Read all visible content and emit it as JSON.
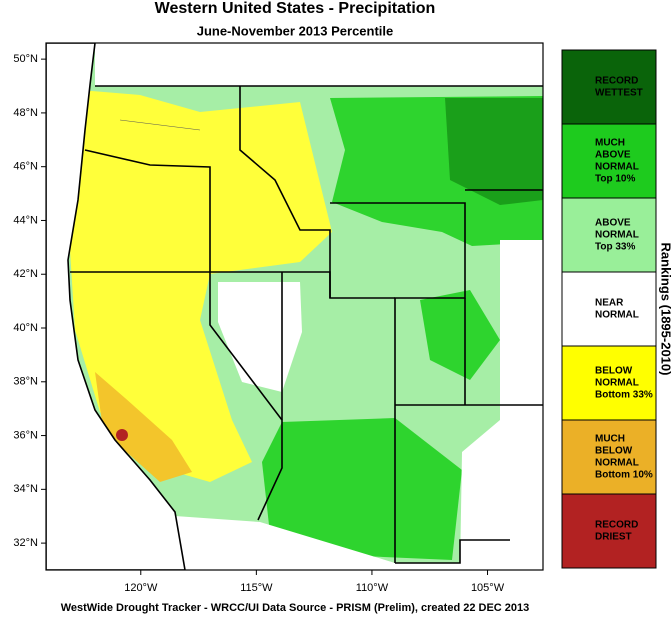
{
  "header": {
    "title": "Western United States - Precipitation",
    "subtitle": "June-November 2013 Percentile"
  },
  "map": {
    "xlim": [
      -124.1,
      -102.6
    ],
    "ylim": [
      31,
      50.6
    ],
    "xticks": [
      {
        "value": -120,
        "label": "120°W"
      },
      {
        "value": -115,
        "label": "115°W"
      },
      {
        "value": -110,
        "label": "110°W"
      },
      {
        "value": -105,
        "label": "105°W"
      }
    ],
    "yticks": [
      {
        "value": 32,
        "label": "32°N"
      },
      {
        "value": 34,
        "label": "34°N"
      },
      {
        "value": 36,
        "label": "36°N"
      },
      {
        "value": 38,
        "label": "38°N"
      },
      {
        "value": 40,
        "label": "40°N"
      },
      {
        "value": 42,
        "label": "42°N"
      },
      {
        "value": 44,
        "label": "44°N"
      },
      {
        "value": 46,
        "label": "46°N"
      },
      {
        "value": 48,
        "label": "48°N"
      },
      {
        "value": 50,
        "label": "50°N"
      }
    ]
  },
  "legend": {
    "title": "Rankings (1895-2010)",
    "items": [
      {
        "lines": [
          "RECORD",
          "WETTEST"
        ],
        "color": "#0a640a"
      },
      {
        "lines": [
          "MUCH",
          "ABOVE",
          "NORMAL",
          "Top 10%"
        ],
        "color": "#1ecb1e"
      },
      {
        "lines": [
          "ABOVE",
          "NORMAL",
          "Top 33%"
        ],
        "color": "#99ef99"
      },
      {
        "lines": [
          "NEAR",
          "NORMAL"
        ],
        "color": "#ffffff"
      },
      {
        "lines": [
          "BELOW",
          "NORMAL",
          "Bottom 33%"
        ],
        "color": "#ffff00"
      },
      {
        "lines": [
          "MUCH",
          "BELOW",
          "NORMAL",
          "Bottom 10%"
        ],
        "color": "#ebb027"
      },
      {
        "lines": [
          "RECORD",
          "DRIEST"
        ],
        "color": "#b22222"
      }
    ]
  },
  "footer": "WestWide Drought Tracker - WRCC/UI  Data Source - PRISM (Prelim), created 22 DEC 2013"
}
